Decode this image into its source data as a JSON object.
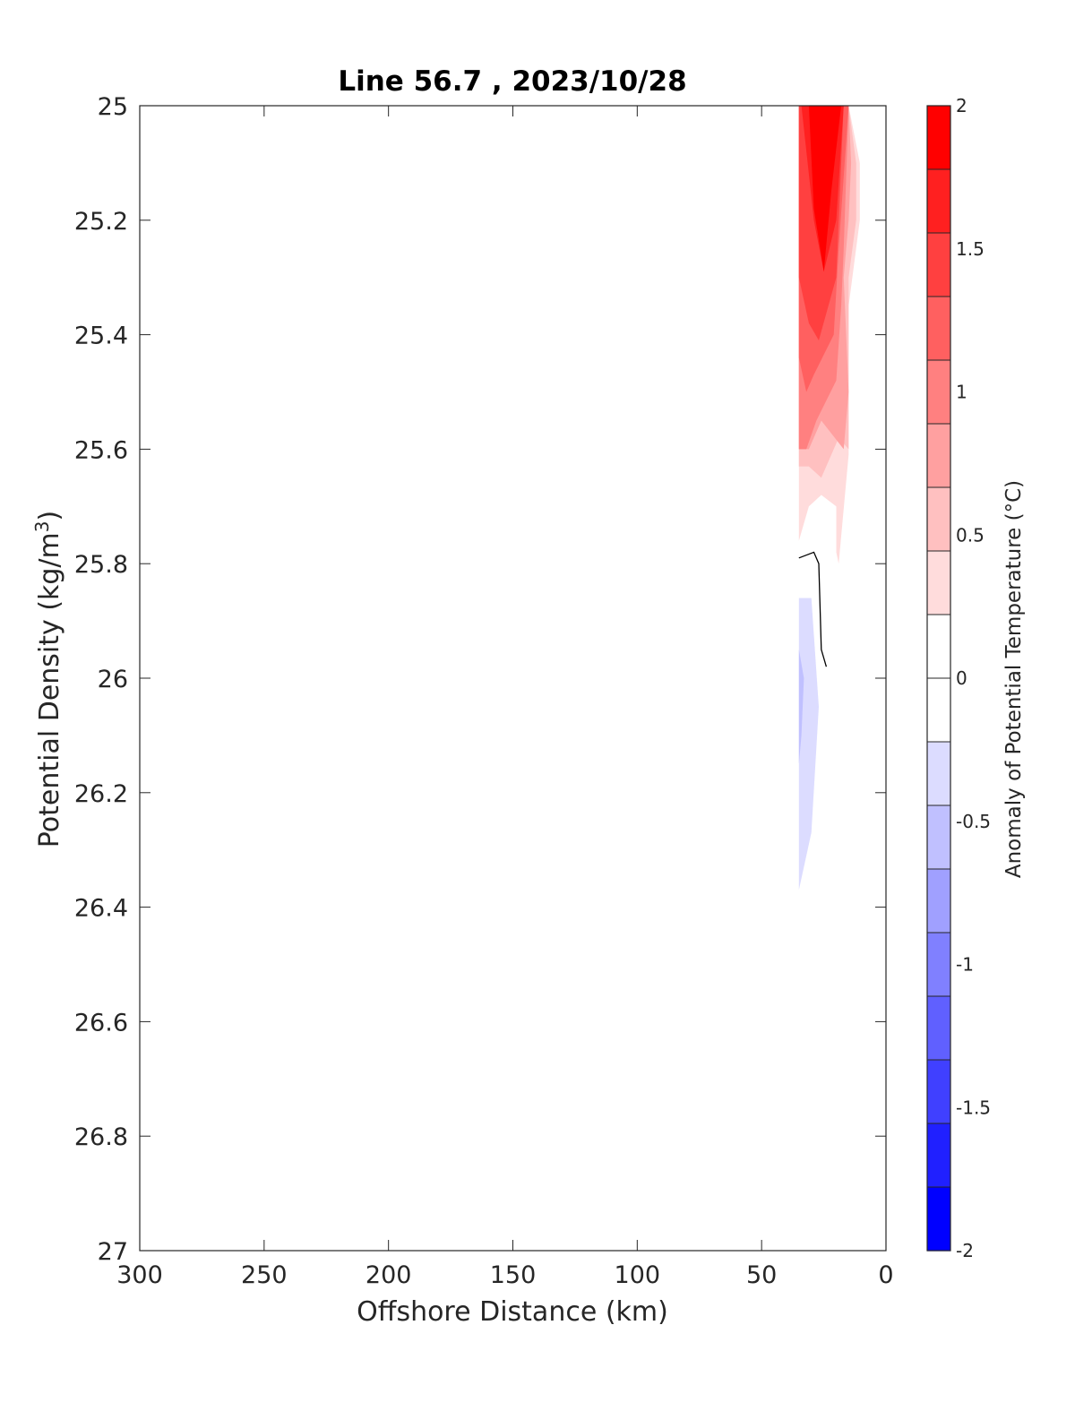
{
  "chart_data": {
    "type": "contourf",
    "title": "Line 56.7 , 2023/10/28",
    "xlabel": "Offshore Distance (km)",
    "ylabel_main": "Potential Density (kg/m",
    "ylabel_sup": "3",
    "ylabel_end": ")",
    "xlim": [
      300,
      0
    ],
    "ylim": [
      27,
      25
    ],
    "x_reversed": true,
    "y_reversed": true,
    "xticks": [
      300,
      250,
      200,
      150,
      100,
      50,
      0
    ],
    "xtick_labels": [
      "300",
      "250",
      "200",
      "150",
      "100",
      "50",
      "0"
    ],
    "yticks": [
      25,
      25.2,
      25.4,
      25.6,
      25.8,
      26,
      26.2,
      26.4,
      26.6,
      26.8,
      27
    ],
    "ytick_labels": [
      "25",
      "25.2",
      "25.4",
      "25.6",
      "25.8",
      "26",
      "26.2",
      "26.4",
      "26.6",
      "26.8",
      "27"
    ],
    "grid": false,
    "colorbar": {
      "label": "Anomaly of Potential Temperature (°C)",
      "range": [
        -2,
        2
      ],
      "ticks": [
        2,
        1.5,
        1,
        0.5,
        0,
        -0.5,
        -1,
        -1.5,
        -2
      ],
      "tick_labels": [
        "2",
        "1.5",
        "1",
        "0.5",
        "0",
        "-0.5",
        "-1",
        "-1.5",
        "-2"
      ],
      "levels": [
        -2,
        -1.75,
        -1.5,
        -1.25,
        -1,
        -0.75,
        -0.5,
        -0.25,
        0.25,
        0.5,
        0.75,
        1,
        1.25,
        1.5,
        1.75,
        2
      ],
      "colors": [
        "#0000ff",
        "#2020ff",
        "#4040ff",
        "#6060ff",
        "#8080ff",
        "#a0a0ff",
        "#c0c0ff",
        "#dcdcff",
        "#ffffff",
        "#ffdcdc",
        "#ffc0c0",
        "#ffa0a0",
        "#ff8080",
        "#ff6060",
        "#ff4040",
        "#ff2020",
        "#ff0000"
      ],
      "band_colors_top_down": [
        "#ff0000",
        "#ff2020",
        "#ff4040",
        "#ff6060",
        "#ff8080",
        "#ffa0a0",
        "#ffc0c0",
        "#ffdcdc",
        "#ffffff",
        "#ffffff",
        "#dcdcff",
        "#c0c0ff",
        "#a0a0ff",
        "#8080ff",
        "#6060ff",
        "#4040ff",
        "#2020ff",
        "#0000ff"
      ]
    },
    "filled_regions": [
      {
        "level": 0.25,
        "color": "#ffdcdc",
        "points": [
          [
            35,
            25.0
          ],
          [
            15,
            25.0
          ],
          [
            10.5,
            25.1
          ],
          [
            10.5,
            25.2
          ],
          [
            15,
            25.35
          ],
          [
            15,
            25.61
          ],
          [
            19,
            25.8
          ],
          [
            20,
            25.78
          ],
          [
            20,
            25.7
          ],
          [
            26,
            25.68
          ],
          [
            31,
            25.7
          ],
          [
            35,
            25.76
          ]
        ]
      },
      {
        "level": 0.5,
        "color": "#ffc0c0",
        "points": [
          [
            35,
            25.0
          ],
          [
            15,
            25.0
          ],
          [
            12,
            25.1
          ],
          [
            12,
            25.2
          ],
          [
            15,
            25.3
          ],
          [
            15,
            25.6
          ],
          [
            19,
            25.58
          ],
          [
            21,
            25.6
          ],
          [
            26,
            25.65
          ],
          [
            31,
            25.63
          ],
          [
            35,
            25.63
          ]
        ]
      },
      {
        "level": 0.75,
        "color": "#ffa0a0",
        "points": [
          [
            35,
            25.0
          ],
          [
            15,
            25.0
          ],
          [
            14,
            25.1
          ],
          [
            15,
            25.2
          ],
          [
            17,
            25.3
          ],
          [
            15,
            25.5
          ],
          [
            17,
            25.6
          ],
          [
            26,
            25.55
          ],
          [
            31,
            25.6
          ],
          [
            35,
            25.6
          ]
        ]
      },
      {
        "level": 1.0,
        "color": "#ff8080",
        "points": [
          [
            35,
            25.0
          ],
          [
            15,
            25.0
          ],
          [
            17,
            25.25
          ],
          [
            18,
            25.35
          ],
          [
            20,
            25.48
          ],
          [
            28,
            25.55
          ],
          [
            32,
            25.6
          ],
          [
            35,
            25.6
          ]
        ]
      },
      {
        "level": 1.25,
        "color": "#ff6060",
        "points": [
          [
            35,
            25.0
          ],
          [
            15,
            25.0
          ],
          [
            19,
            25.25
          ],
          [
            21,
            25.4
          ],
          [
            29,
            25.47
          ],
          [
            32,
            25.5
          ],
          [
            35,
            25.44
          ]
        ]
      },
      {
        "level": 1.5,
        "color": "#ff4040",
        "points": [
          [
            35,
            25.0
          ],
          [
            17,
            25.0
          ],
          [
            20,
            25.3
          ],
          [
            27,
            25.41
          ],
          [
            31,
            25.38
          ],
          [
            35,
            25.3
          ]
        ]
      },
      {
        "level": 1.75,
        "color": "#ff2020",
        "points": [
          [
            35,
            25.0
          ],
          [
            17,
            25.0
          ],
          [
            20,
            25.2
          ],
          [
            25,
            25.29
          ],
          [
            29,
            25.2
          ],
          [
            34,
            25.0
          ]
        ]
      },
      {
        "level": 1.9,
        "color": "#ff0000",
        "points": [
          [
            33,
            25.0
          ],
          [
            18,
            25.0
          ],
          [
            22,
            25.15
          ],
          [
            25,
            25.29
          ],
          [
            29,
            25.18
          ],
          [
            31,
            25.0
          ]
        ]
      },
      {
        "level": -0.25,
        "color": "#dcdcff",
        "points": [
          [
            35,
            25.86
          ],
          [
            30,
            25.86
          ],
          [
            27,
            26.05
          ],
          [
            30,
            26.27
          ],
          [
            35,
            26.37
          ]
        ]
      },
      {
        "level": -0.5,
        "color": "#c0c0ff",
        "points": [
          [
            35,
            25.95
          ],
          [
            33,
            26.0
          ],
          [
            34,
            26.1
          ],
          [
            35,
            26.15
          ]
        ]
      }
    ],
    "contour_line": {
      "level": 0,
      "color": "#000000",
      "points": [
        [
          35,
          25.79
        ],
        [
          29,
          25.78
        ],
        [
          27,
          25.8
        ],
        [
          26,
          25.95
        ],
        [
          24,
          25.98
        ]
      ]
    }
  }
}
